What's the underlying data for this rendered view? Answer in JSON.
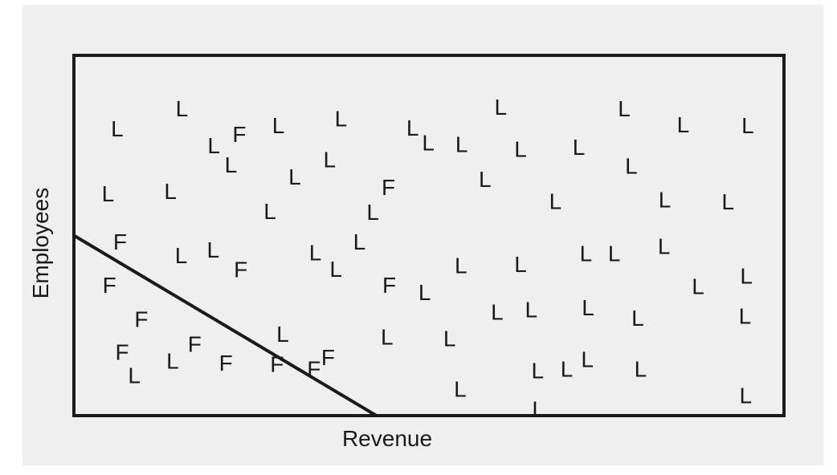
{
  "chart_data": {
    "type": "scatter",
    "xlabel": "Revenue",
    "ylabel": "Employees",
    "xlim": [
      0,
      100
    ],
    "ylim": [
      0,
      100
    ],
    "grid": false,
    "colors": {
      "frame": "#1a1a1a",
      "text": "#1a1a1a",
      "background": "#efefef"
    },
    "decision_boundary": {
      "from": [
        0,
        50
      ],
      "to": [
        42.6,
        0
      ]
    },
    "series": [
      {
        "label": "L",
        "points": [
          [
            6.1,
            79.6
          ],
          [
            15.2,
            85.2
          ],
          [
            19.7,
            74.9
          ],
          [
            22.1,
            69.6
          ],
          [
            28.8,
            80.5
          ],
          [
            37.6,
            82.4
          ],
          [
            47.7,
            79.8
          ],
          [
            60.1,
            85.6
          ],
          [
            77.5,
            85.2
          ],
          [
            85.8,
            80.7
          ],
          [
            94.9,
            80.5
          ],
          [
            36.0,
            71.0
          ],
          [
            49.9,
            75.7
          ],
          [
            54.6,
            75.3
          ],
          [
            62.9,
            73.9
          ],
          [
            71.1,
            74.5
          ],
          [
            78.5,
            69.3
          ],
          [
            31.1,
            66.3
          ],
          [
            57.9,
            65.6
          ],
          [
            4.8,
            61.6
          ],
          [
            13.6,
            62.3
          ],
          [
            27.6,
            56.7
          ],
          [
            42.1,
            56.5
          ],
          [
            67.8,
            59.5
          ],
          [
            83.2,
            59.9
          ],
          [
            92.1,
            59.3
          ],
          [
            15.1,
            44.4
          ],
          [
            19.6,
            46.0
          ],
          [
            40.2,
            48.2
          ],
          [
            34.0,
            45.2
          ],
          [
            36.9,
            40.7
          ],
          [
            54.5,
            41.6
          ],
          [
            62.9,
            42.0
          ],
          [
            72.1,
            45.0
          ],
          [
            76.1,
            45.0
          ],
          [
            83.1,
            47.0
          ],
          [
            94.7,
            38.8
          ],
          [
            49.4,
            34.2
          ],
          [
            87.9,
            35.9
          ],
          [
            64.4,
            29.4
          ],
          [
            94.5,
            27.6
          ],
          [
            72.4,
            29.9
          ],
          [
            59.6,
            28.7
          ],
          [
            79.4,
            27.1
          ],
          [
            29.4,
            22.6
          ],
          [
            44.1,
            21.8
          ],
          [
            52.9,
            21.4
          ],
          [
            8.5,
            11.1
          ],
          [
            13.9,
            15.1
          ],
          [
            65.3,
            12.5
          ],
          [
            69.4,
            12.9
          ],
          [
            72.3,
            15.6
          ],
          [
            79.8,
            12.9
          ],
          [
            54.4,
            7.3
          ],
          [
            94.6,
            5.6
          ],
          [
            65.4,
            1.8
          ]
        ]
      },
      {
        "label": "F",
        "points": [
          [
            23.3,
            78.1
          ],
          [
            44.3,
            63.4
          ],
          [
            6.5,
            48.2
          ],
          [
            23.5,
            40.5
          ],
          [
            5.0,
            36.2
          ],
          [
            44.4,
            36.2
          ],
          [
            9.5,
            26.7
          ],
          [
            17.0,
            19.8
          ],
          [
            6.8,
            17.6
          ],
          [
            21.4,
            14.6
          ],
          [
            28.6,
            14.2
          ],
          [
            33.8,
            12.9
          ],
          [
            35.8,
            16.1
          ]
        ]
      }
    ]
  }
}
